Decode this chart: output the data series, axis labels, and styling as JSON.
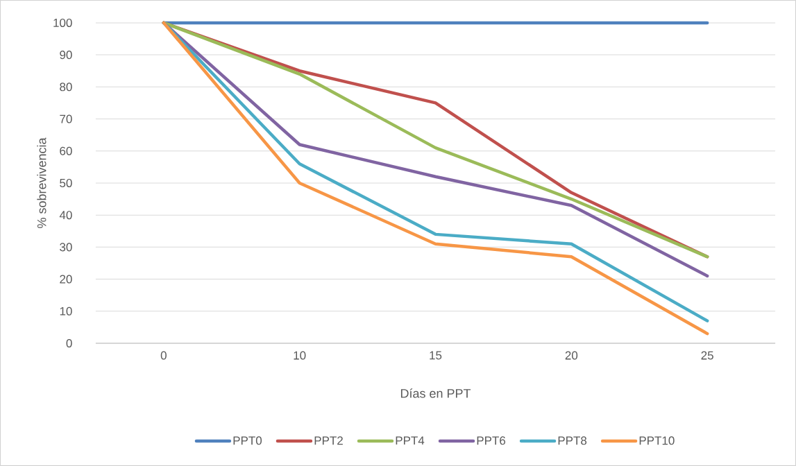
{
  "chart_data": {
    "type": "line",
    "xlabel": "Días en PPT",
    "ylabel": "% sobrevivencia",
    "categories": [
      "0",
      "10",
      "15",
      "20",
      "25"
    ],
    "series": [
      {
        "name": "PPT0",
        "color": "#4f81bd",
        "values": [
          100,
          100,
          100,
          100,
          100
        ]
      },
      {
        "name": "PPT2",
        "color": "#c0504d",
        "values": [
          100,
          85,
          75,
          47,
          27
        ]
      },
      {
        "name": "PPT4",
        "color": "#9bbb59",
        "values": [
          100,
          84,
          61,
          45,
          27
        ]
      },
      {
        "name": "PPT6",
        "color": "#8064a2",
        "values": [
          100,
          62,
          52,
          43,
          21
        ]
      },
      {
        "name": "PPT8",
        "color": "#4bacc6",
        "values": [
          100,
          56,
          34,
          31,
          7
        ]
      },
      {
        "name": "PPT10",
        "color": "#f79646",
        "values": [
          100,
          50,
          31,
          27,
          3
        ]
      }
    ],
    "ylim": [
      0,
      100
    ],
    "yticks": [
      0,
      10,
      20,
      30,
      40,
      50,
      60,
      70,
      80,
      90,
      100
    ],
    "grid": "y",
    "legend": "bottom"
  }
}
